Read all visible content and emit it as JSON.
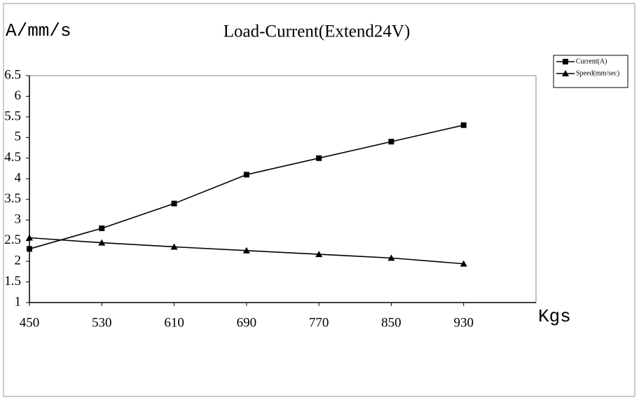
{
  "chart_data": {
    "type": "line",
    "title": "Load-Current(Extend24V)",
    "y_label": "A/mm/s",
    "x_label": "Kgs",
    "x": [
      450,
      530,
      610,
      690,
      770,
      850,
      930
    ],
    "series": [
      {
        "name": "Current(A)",
        "color": "#000000",
        "marker": "square",
        "values": [
          2.3,
          2.8,
          3.4,
          4.1,
          4.5,
          4.9,
          5.3
        ]
      },
      {
        "name": "Speed(mm/sec)",
        "color": "#000000",
        "marker": "triangle",
        "values": [
          2.57,
          2.45,
          2.35,
          2.26,
          2.17,
          2.08,
          1.94
        ]
      }
    ],
    "xlim": [
      450,
      1010
    ],
    "xticks": [
      450,
      530,
      610,
      690,
      770,
      850,
      930
    ],
    "ylim": [
      1,
      6.5
    ],
    "yticks": [
      1,
      1.5,
      2,
      2.5,
      3,
      3.5,
      4,
      4.5,
      5,
      5.5,
      6,
      6.5
    ],
    "grid": false,
    "legend": "top-right"
  }
}
